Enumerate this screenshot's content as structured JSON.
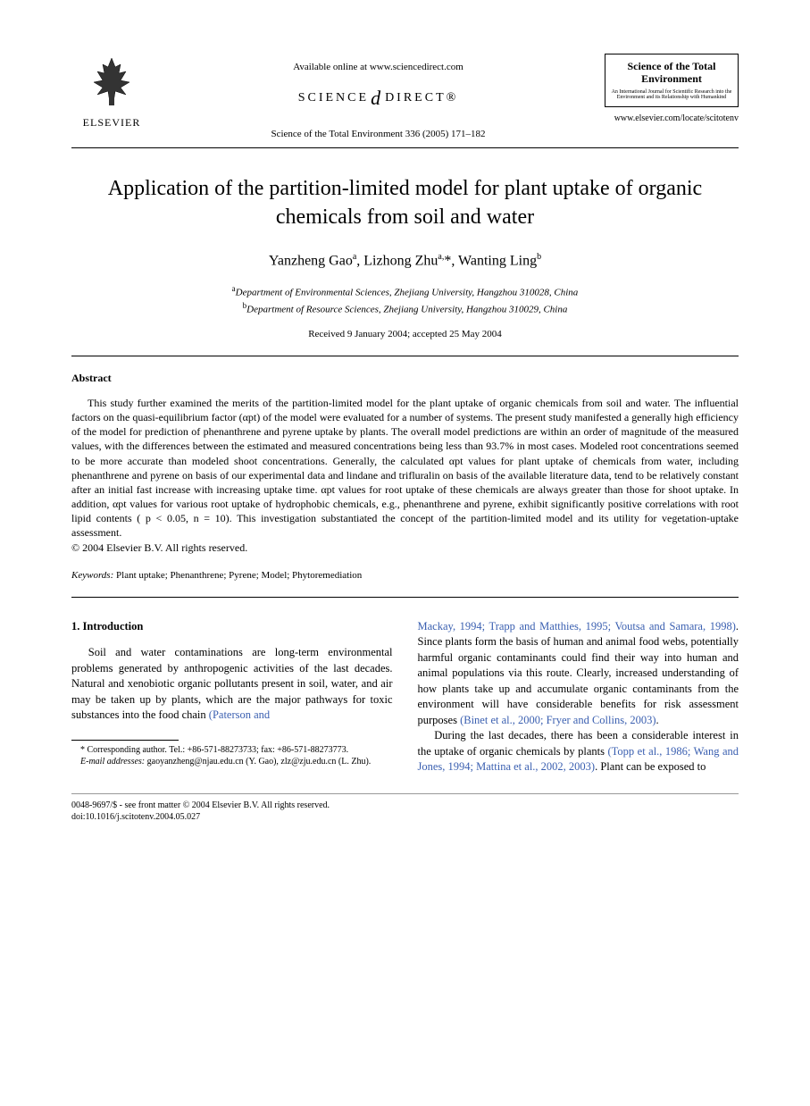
{
  "header": {
    "publisher_label": "ELSEVIER",
    "available_online": "Available online at www.sciencedirect.com",
    "sd_left": "SCIENCE",
    "sd_at": "d",
    "sd_right": "DIRECT®",
    "journal_ref": "Science of the Total Environment 336 (2005) 171–182",
    "journal_box_title": "Science of the Total Environment",
    "journal_box_sub": "An International Journal for Scientific Research into the Environment and its Relationship with Humankind",
    "journal_url": "www.elsevier.com/locate/scitotenv"
  },
  "title": "Application of the partition-limited model for plant uptake of organic chemicals from soil and water",
  "authors_html": "Yanzheng Gao<sup>a</sup>, Lizhong Zhu<sup>a,</sup>*, Wanting Ling<sup>b</sup>",
  "affiliations": {
    "a": "Department of Environmental Sciences, Zhejiang University, Hangzhou 310028, China",
    "b": "Department of Resource Sciences, Zhejiang University, Hangzhou 310029, China"
  },
  "dates": "Received 9 January 2004; accepted 25 May 2004",
  "abstract": {
    "heading": "Abstract",
    "text": "This study further examined the merits of the partition-limited model for the plant uptake of organic chemicals from soil and water. The influential factors on the quasi-equilibrium factor (αpt) of the model were evaluated for a number of systems. The present study manifested a generally high efficiency of the model for prediction of phenanthrene and pyrene uptake by plants. The overall model predictions are within an order of magnitude of the measured values, with the differences between the estimated and measured concentrations being less than 93.7% in most cases. Modeled root concentrations seemed to be more accurate than modeled shoot concentrations. Generally, the calculated αpt values for plant uptake of chemicals from water, including phenanthrene and pyrene on basis of our experimental data and lindane and trifluralin on basis of the available literature data, tend to be relatively constant after an initial fast increase with increasing uptake time. αpt values for root uptake of these chemicals are always greater than those for shoot uptake. In addition, αpt values for various root uptake of hydrophobic chemicals, e.g., phenanthrene and pyrene, exhibit significantly positive correlations with root lipid contents ( p < 0.05, n = 10). This investigation substantiated the concept of the partition-limited model and its utility for vegetation-uptake assessment.",
    "copyright": "© 2004 Elsevier B.V. All rights reserved."
  },
  "keywords": {
    "label": "Keywords:",
    "text": "Plant uptake; Phenanthrene; Pyrene; Model; Phytoremediation"
  },
  "intro": {
    "heading": "1. Introduction",
    "left_p1_a": "Soil and water contaminations are long-term environmental problems generated by anthropogenic activities of the last decades. Natural and xenobiotic organic pollutants present in soil, water, and air may be taken up by plants, which are the major pathways for toxic substances into the food chain ",
    "left_p1_link": "(Paterson and",
    "right_p1_link": "Mackay, 1994; Trapp and Matthies, 1995; Voutsa and Samara, 1998)",
    "right_p1_a": ". Since plants form the basis of human and animal food webs, potentially harmful organic contaminants could find their way into human and animal populations via this route. Clearly, increased understanding of how plants take up and accumulate organic contaminants from the environment will have considerable benefits for risk assessment purposes ",
    "right_p1_link2": "(Binet et al., 2000; Fryer and Collins, 2003)",
    "right_p1_b": ".",
    "right_p2_a": "During the last decades, there has been a considerable interest in the uptake of organic chemicals by plants ",
    "right_p2_link": "(Topp et al., 1986; Wang and Jones, 1994; Mattina et al., 2002, 2003)",
    "right_p2_b": ". Plant can be exposed to"
  },
  "footnotes": {
    "corr": "* Corresponding author. Tel.: +86-571-88273733; fax: +86-571-88273773.",
    "emails_label": "E-mail addresses:",
    "emails": "gaoyanzheng@njau.edu.cn (Y. Gao), zlz@zju.edu.cn (L. Zhu)."
  },
  "footer": {
    "line1": "0048-9697/$ - see front matter © 2004 Elsevier B.V. All rights reserved.",
    "line2": "doi:10.1016/j.scitotenv.2004.05.027"
  },
  "colors": {
    "text": "#000000",
    "link": "#3a5fb0",
    "background": "#ffffff"
  }
}
